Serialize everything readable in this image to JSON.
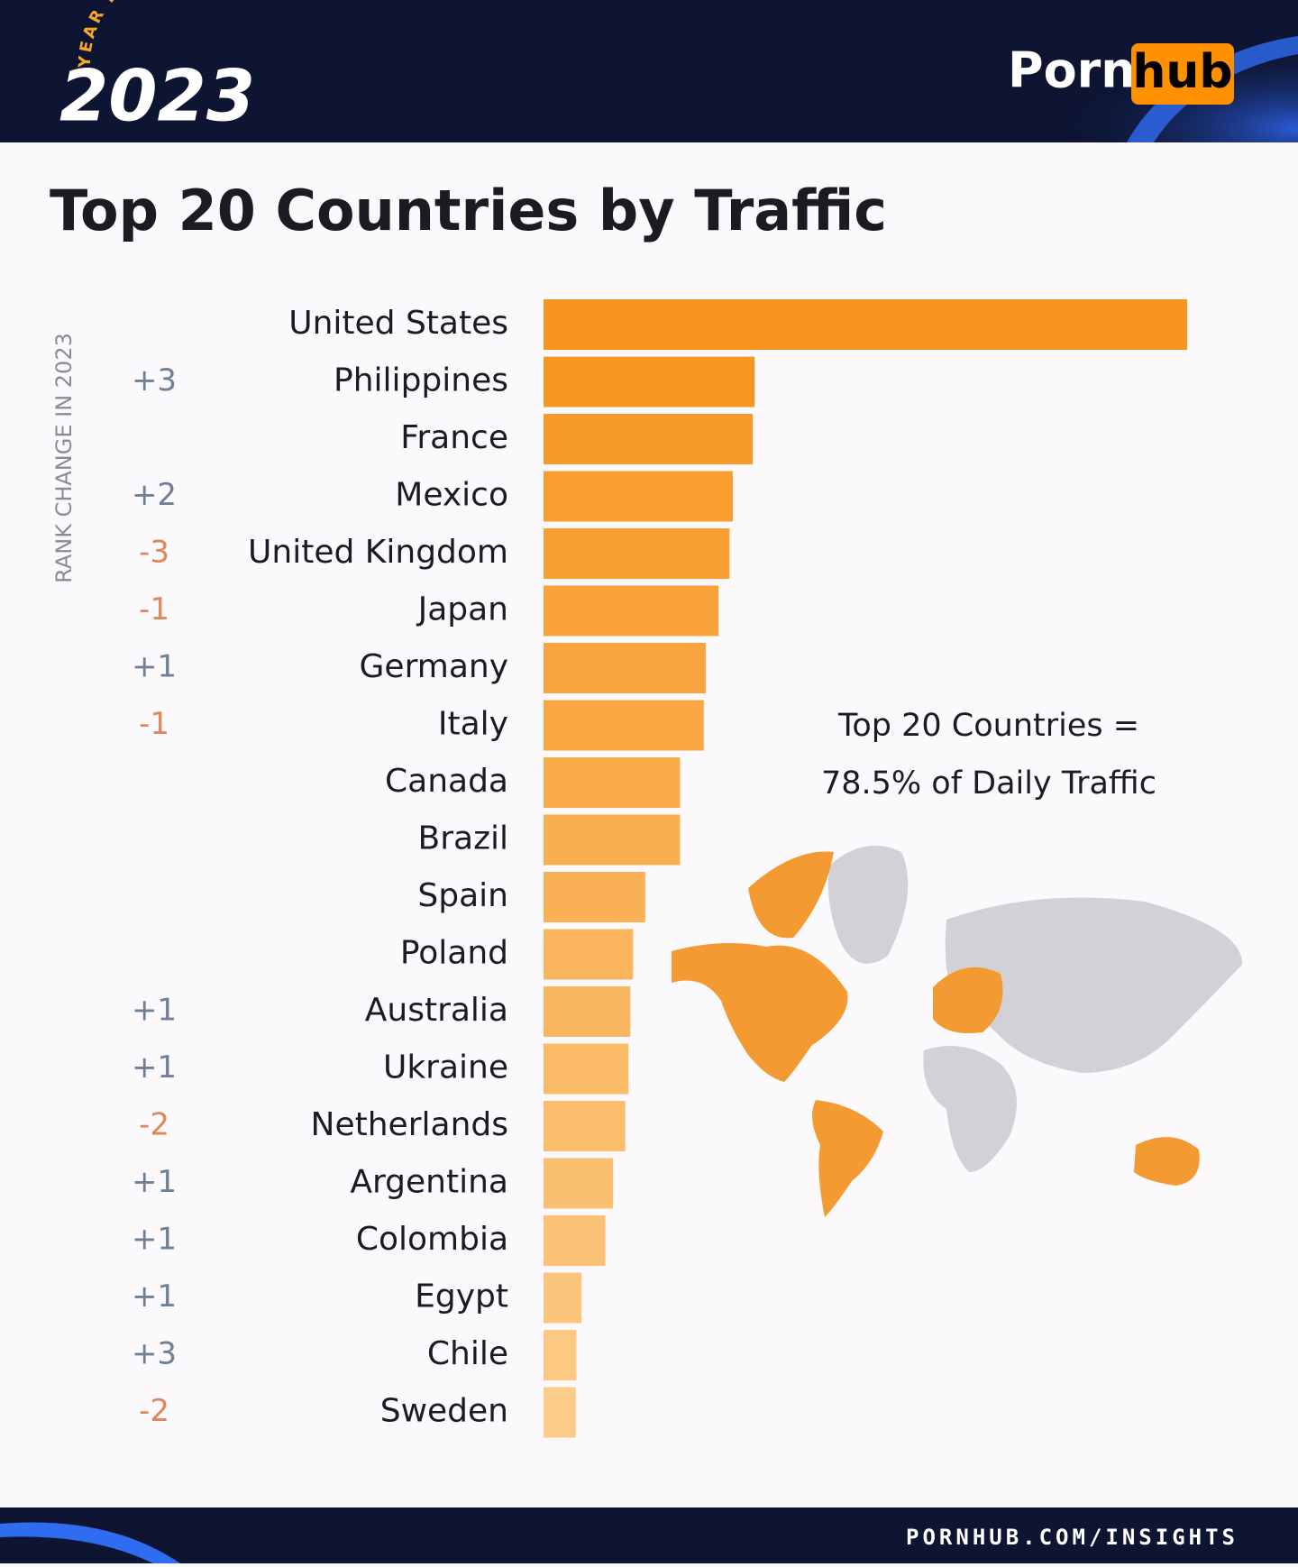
{
  "header": {
    "badge": "YEAR IN REVIEW",
    "year": "2023",
    "logo_left": "Porn",
    "logo_right": "hub"
  },
  "chart_data": {
    "type": "hbar",
    "title": "Top 20 Countries by Traffic",
    "axis_label": "RANK CHANGE IN 2023",
    "categories": [
      "United States",
      "Philippines",
      "France",
      "Mexico",
      "United Kingdom",
      "Japan",
      "Germany",
      "Italy",
      "Canada",
      "Brazil",
      "Spain",
      "Poland",
      "Australia",
      "Ukraine",
      "Netherlands",
      "Argentina",
      "Colombia",
      "Egypt",
      "Chile",
      "Sweden"
    ],
    "values": [
      100,
      32.8,
      32.5,
      29.4,
      28.9,
      27.2,
      25.2,
      24.9,
      21.2,
      21.2,
      15.8,
      13.9,
      13.5,
      13.2,
      12.7,
      10.8,
      9.6,
      5.9,
      5.1,
      5.0
    ],
    "rank_changes": [
      null,
      "+3",
      null,
      "+2",
      "-3",
      "-1",
      "+1",
      "-1",
      null,
      null,
      null,
      null,
      "+1",
      "+1",
      "-2",
      "+1",
      "+1",
      "+1",
      "+3",
      "-2"
    ],
    "xlim": [
      0,
      100
    ],
    "color_gradient": [
      "#f7941d",
      "#fccb88"
    ],
    "rank_colors": {
      "up": "#6f7f96",
      "down": "#e0875a"
    },
    "annotation": [
      "Top 20 Countries =",
      "78.5% of Daily Traffic"
    ]
  },
  "footer": {
    "url": "PORNHUB.COM/INSIGHTS"
  }
}
